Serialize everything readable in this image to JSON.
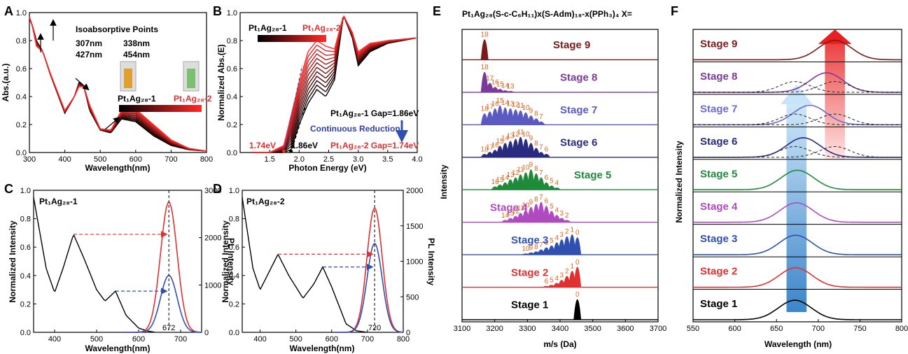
{
  "chart_data": [
    {
      "panel": "A",
      "type": "line",
      "xlabel": "Wavelength(nm)",
      "ylabel": "Abs.(a.u.)",
      "xlim": [
        300,
        800
      ],
      "ylim": [
        0.0,
        1.0
      ],
      "xticks": [
        "300",
        "400",
        "500",
        "600",
        "700",
        "800"
      ],
      "yticks": [
        "0.0",
        "0.2",
        "0.4",
        "0.6",
        "0.8",
        "1.0"
      ],
      "title": "Isoabsorptive Points",
      "iso_points": [
        "307nm",
        "338nm",
        "427nm",
        "454nm"
      ],
      "legend": [
        "Pt₁Ag₂₈-1",
        "Pt₁Ag₂₈-2"
      ],
      "series_start": {
        "x": [
          300,
          307,
          320,
          338,
          360,
          400,
          427,
          440,
          454,
          470,
          500,
          530,
          560,
          600,
          650,
          700,
          750,
          800
        ],
        "y": [
          0.95,
          0.92,
          0.8,
          0.72,
          0.55,
          0.28,
          0.4,
          0.5,
          0.47,
          0.3,
          0.16,
          0.14,
          0.24,
          0.22,
          0.12,
          0.05,
          0.02,
          0.01
        ]
      },
      "series_end": {
        "x": [
          300,
          307,
          320,
          338,
          360,
          400,
          427,
          440,
          454,
          470,
          500,
          530,
          560,
          600,
          650,
          700,
          750,
          800
        ],
        "y": [
          0.97,
          0.92,
          0.76,
          0.72,
          0.56,
          0.3,
          0.4,
          0.47,
          0.47,
          0.34,
          0.17,
          0.16,
          0.3,
          0.31,
          0.2,
          0.09,
          0.03,
          0.01
        ]
      },
      "n_curves": 12
    },
    {
      "panel": "B",
      "type": "line",
      "xlabel": "Photon Energy (eV)",
      "ylabel": "Normalized Abs.(E)",
      "xlim": [
        1.0,
        4.0
      ],
      "ylim": [
        0.0,
        1.0
      ],
      "xticks": [
        "1.5",
        "2.0",
        "2.5",
        "3.0",
        "3.5",
        "4.0"
      ],
      "yticks": [
        "0.0",
        "0.2",
        "0.4",
        "0.6",
        "0.8",
        "1.0"
      ],
      "legend": [
        "Pt₁Ag₂₈-1",
        "Pt₁Ag₂₈-2"
      ],
      "annotations": [
        "Pt₁Ag₂₈-1 Gap=1.86eV",
        "Continuous Reduction",
        "Pt₁Ag₂₈-2 Gap=1.74eV",
        "1.74eV",
        "1.86eV"
      ],
      "series_start": {
        "x": [
          1.74,
          1.86,
          2.0,
          2.15,
          2.3,
          2.45,
          2.6,
          2.75,
          2.9,
          3.0,
          3.2,
          3.5,
          4.0
        ],
        "y": [
          0.0,
          0.02,
          0.2,
          0.35,
          0.45,
          0.4,
          0.52,
          0.98,
          0.82,
          0.62,
          0.72,
          0.78,
          0.82
        ]
      },
      "series_end": {
        "x": [
          1.5,
          1.74,
          2.0,
          2.15,
          2.3,
          2.45,
          2.6,
          2.75,
          2.9,
          3.0,
          3.2,
          3.5,
          4.0
        ],
        "y": [
          0.0,
          0.05,
          0.5,
          0.72,
          0.8,
          0.76,
          0.74,
          0.98,
          0.86,
          0.72,
          0.78,
          0.8,
          0.82
        ]
      },
      "n_curves": 12
    },
    {
      "panel": "C",
      "type": "line",
      "title": "Pt₁Ag₂₈-1",
      "xlabel": "Wavelength(nm)",
      "ylabel": "Normalized Intensity",
      "ylabel_right": "PL Intensity",
      "xlim": [
        350,
        750
      ],
      "ylim": [
        0.0,
        1.0
      ],
      "ylim_right": [
        0,
        3000
      ],
      "xticks": [
        "400",
        "500",
        "600",
        "700"
      ],
      "yticks": [
        "0.0",
        "0.2",
        "0.4",
        "0.6",
        "0.8",
        "1.0"
      ],
      "yticks_right": [
        "0",
        "1000",
        "2000",
        "3000"
      ],
      "marker": "672",
      "absorption": {
        "x": [
          350,
          380,
          400,
          420,
          445,
          470,
          500,
          520,
          545,
          570,
          600,
          620,
          640
        ],
        "y": [
          0.95,
          0.45,
          0.28,
          0.45,
          0.69,
          0.52,
          0.3,
          0.22,
          0.29,
          0.12,
          0.03,
          0.01,
          0.0
        ]
      },
      "pl_red": {
        "center": 672,
        "peak": 2750,
        "width": 28
      },
      "pl_blue": {
        "center": 672,
        "peak": 1200,
        "width": 28
      }
    },
    {
      "panel": "D",
      "type": "line",
      "title": "Pt₁Ag₂₈-2",
      "xlabel": "Wavelength(nm)",
      "ylabel": "Normalized Intensity",
      "ylabel_right": "PL Intensity",
      "xlim": [
        350,
        800
      ],
      "ylim": [
        0.0,
        1.0
      ],
      "ylim_right": [
        0,
        2000
      ],
      "xticks": [
        "400",
        "500",
        "600",
        "700",
        "800"
      ],
      "yticks": [
        "0.0",
        "0.2",
        "0.4",
        "0.6",
        "0.8",
        "1.0"
      ],
      "yticks_right": [
        "0",
        "500",
        "1000",
        "1500",
        "2000"
      ],
      "marker": "720",
      "absorption": {
        "x": [
          350,
          380,
          400,
          420,
          450,
          480,
          520,
          550,
          575,
          600,
          640,
          670,
          700
        ],
        "y": [
          0.95,
          0.45,
          0.3,
          0.4,
          0.55,
          0.4,
          0.24,
          0.34,
          0.46,
          0.32,
          0.06,
          0.01,
          0.0
        ]
      },
      "pl_red": {
        "center": 720,
        "peak": 1750,
        "width": 30
      },
      "pl_blue": {
        "center": 720,
        "peak": 1250,
        "width": 30
      }
    },
    {
      "panel": "E",
      "type": "bar",
      "title": "Pt₁Ag₂₈(S-c-C₆H₁₁)x(S-Adm)₁₈-x(PPh₃)₄  X=",
      "xlabel": "m/s (Da)",
      "ylabel": "Intensity",
      "xlim": [
        3100,
        3700
      ],
      "xticks": [
        "3100",
        "3200",
        "3300",
        "3400",
        "3500",
        "3600",
        "3700"
      ],
      "stages": [
        {
          "name": "Stage 9",
          "color": "#7a1a1a",
          "labels": [
            "18"
          ],
          "xs": [
            3169
          ],
          "hs": [
            1.0
          ]
        },
        {
          "name": "Stage 8",
          "color": "#7a3a9a",
          "labels": [
            "18",
            "17",
            "16",
            "15",
            "14",
            "13"
          ],
          "xs": [
            3169,
            3185,
            3201,
            3216,
            3232,
            3248
          ],
          "hs": [
            1.0,
            0.45,
            0.25,
            0.15,
            0.08,
            0.05
          ]
        },
        {
          "name": "Stage 7",
          "color": "#5a5ac0",
          "labels": [
            "18",
            "17",
            "16",
            "15",
            "14",
            "13",
            "12",
            "11",
            "10",
            "9",
            "8",
            "7"
          ],
          "xs": [
            3169,
            3185,
            3201,
            3216,
            3232,
            3248,
            3264,
            3279,
            3295,
            3311,
            3327,
            3342
          ],
          "hs": [
            0.55,
            0.65,
            0.8,
            0.95,
            0.85,
            0.8,
            0.75,
            0.7,
            0.6,
            0.45,
            0.3,
            0.15
          ]
        },
        {
          "name": "Stage 6",
          "color": "#2a2a80",
          "labels": [
            "18",
            "17",
            "16",
            "15",
            "14",
            "13",
            "12",
            "11",
            "10",
            "9",
            "8",
            "7",
            "6"
          ],
          "xs": [
            3169,
            3185,
            3201,
            3216,
            3232,
            3248,
            3264,
            3279,
            3295,
            3311,
            3327,
            3342,
            3358
          ],
          "hs": [
            0.15,
            0.25,
            0.35,
            0.55,
            0.7,
            0.8,
            0.9,
            1.0,
            0.9,
            0.7,
            0.45,
            0.25,
            0.15
          ]
        },
        {
          "name": "Stage 5",
          "color": "#1e8a3a",
          "labels": [
            "16",
            "15",
            "14",
            "13",
            "12",
            "11",
            "10",
            "9",
            "8",
            "7",
            "6",
            "5",
            "4"
          ],
          "xs": [
            3201,
            3216,
            3232,
            3248,
            3264,
            3279,
            3295,
            3311,
            3327,
            3342,
            3358,
            3374,
            3390
          ],
          "hs": [
            0.15,
            0.25,
            0.35,
            0.5,
            0.6,
            0.75,
            0.85,
            1.0,
            0.8,
            0.6,
            0.35,
            0.2,
            0.1
          ]
        },
        {
          "name": "Stage 4",
          "color": "#b04ac0",
          "labels": [
            "14",
            "13",
            "12",
            "11",
            "10",
            "9",
            "8",
            "7",
            "6",
            "5",
            "4",
            "3",
            "2"
          ],
          "xs": [
            3232,
            3248,
            3264,
            3279,
            3295,
            3311,
            3327,
            3342,
            3358,
            3374,
            3390,
            3405,
            3421
          ],
          "hs": [
            0.1,
            0.2,
            0.3,
            0.45,
            0.6,
            0.75,
            0.9,
            1.0,
            0.8,
            0.55,
            0.35,
            0.2,
            0.1
          ]
        },
        {
          "name": "Stage 3",
          "color": "#3050b0",
          "labels": [
            "10",
            "9",
            "8",
            "7",
            "6",
            "5",
            "4",
            "3",
            "2",
            "1",
            "0"
          ],
          "xs": [
            3295,
            3311,
            3327,
            3342,
            3358,
            3374,
            3390,
            3405,
            3421,
            3437,
            3453
          ],
          "hs": [
            0.05,
            0.1,
            0.15,
            0.25,
            0.35,
            0.45,
            0.6,
            0.75,
            0.9,
            1.0,
            0.85
          ]
        },
        {
          "name": "Stage 2",
          "color": "#e03030",
          "labels": [
            "6",
            "5",
            "4",
            "3",
            "2",
            "1",
            "0"
          ],
          "xs": [
            3358,
            3374,
            3390,
            3405,
            3421,
            3437,
            3453
          ],
          "hs": [
            0.05,
            0.1,
            0.2,
            0.35,
            0.55,
            0.8,
            1.0
          ]
        },
        {
          "name": "Stage 1",
          "color": "#000000",
          "labels": [
            "0"
          ],
          "xs": [
            3453
          ],
          "hs": [
            1.0
          ]
        }
      ]
    },
    {
      "panel": "F",
      "type": "line",
      "xlabel": "Wavelength (nm)",
      "ylabel": "Normalized Intensity",
      "xlim": [
        550,
        800
      ],
      "xticks": [
        "550",
        "600",
        "650",
        "700",
        "750",
        "800"
      ],
      "stages": [
        {
          "name": "Stage 9",
          "color": "#7a1a1a",
          "center": 720
        },
        {
          "name": "Stage 8",
          "color": "#7a3a9a",
          "center": 710
        },
        {
          "name": "Stage 7",
          "color": "#6a6ad0",
          "center": 690
        },
        {
          "name": "Stage 6",
          "color": "#2a2a80",
          "center": 682
        },
        {
          "name": "Stage 5",
          "color": "#1e8a3a",
          "center": 675
        },
        {
          "name": "Stage 4",
          "color": "#b04ac0",
          "center": 674
        },
        {
          "name": "Stage 3",
          "color": "#3050b0",
          "center": 673
        },
        {
          "name": "Stage 2",
          "color": "#e03030",
          "center": 673
        },
        {
          "name": "Stage 1",
          "color": "#000000",
          "center": 672
        }
      ]
    }
  ],
  "panel_letters": [
    "A",
    "B",
    "C",
    "D",
    "E",
    "F"
  ]
}
